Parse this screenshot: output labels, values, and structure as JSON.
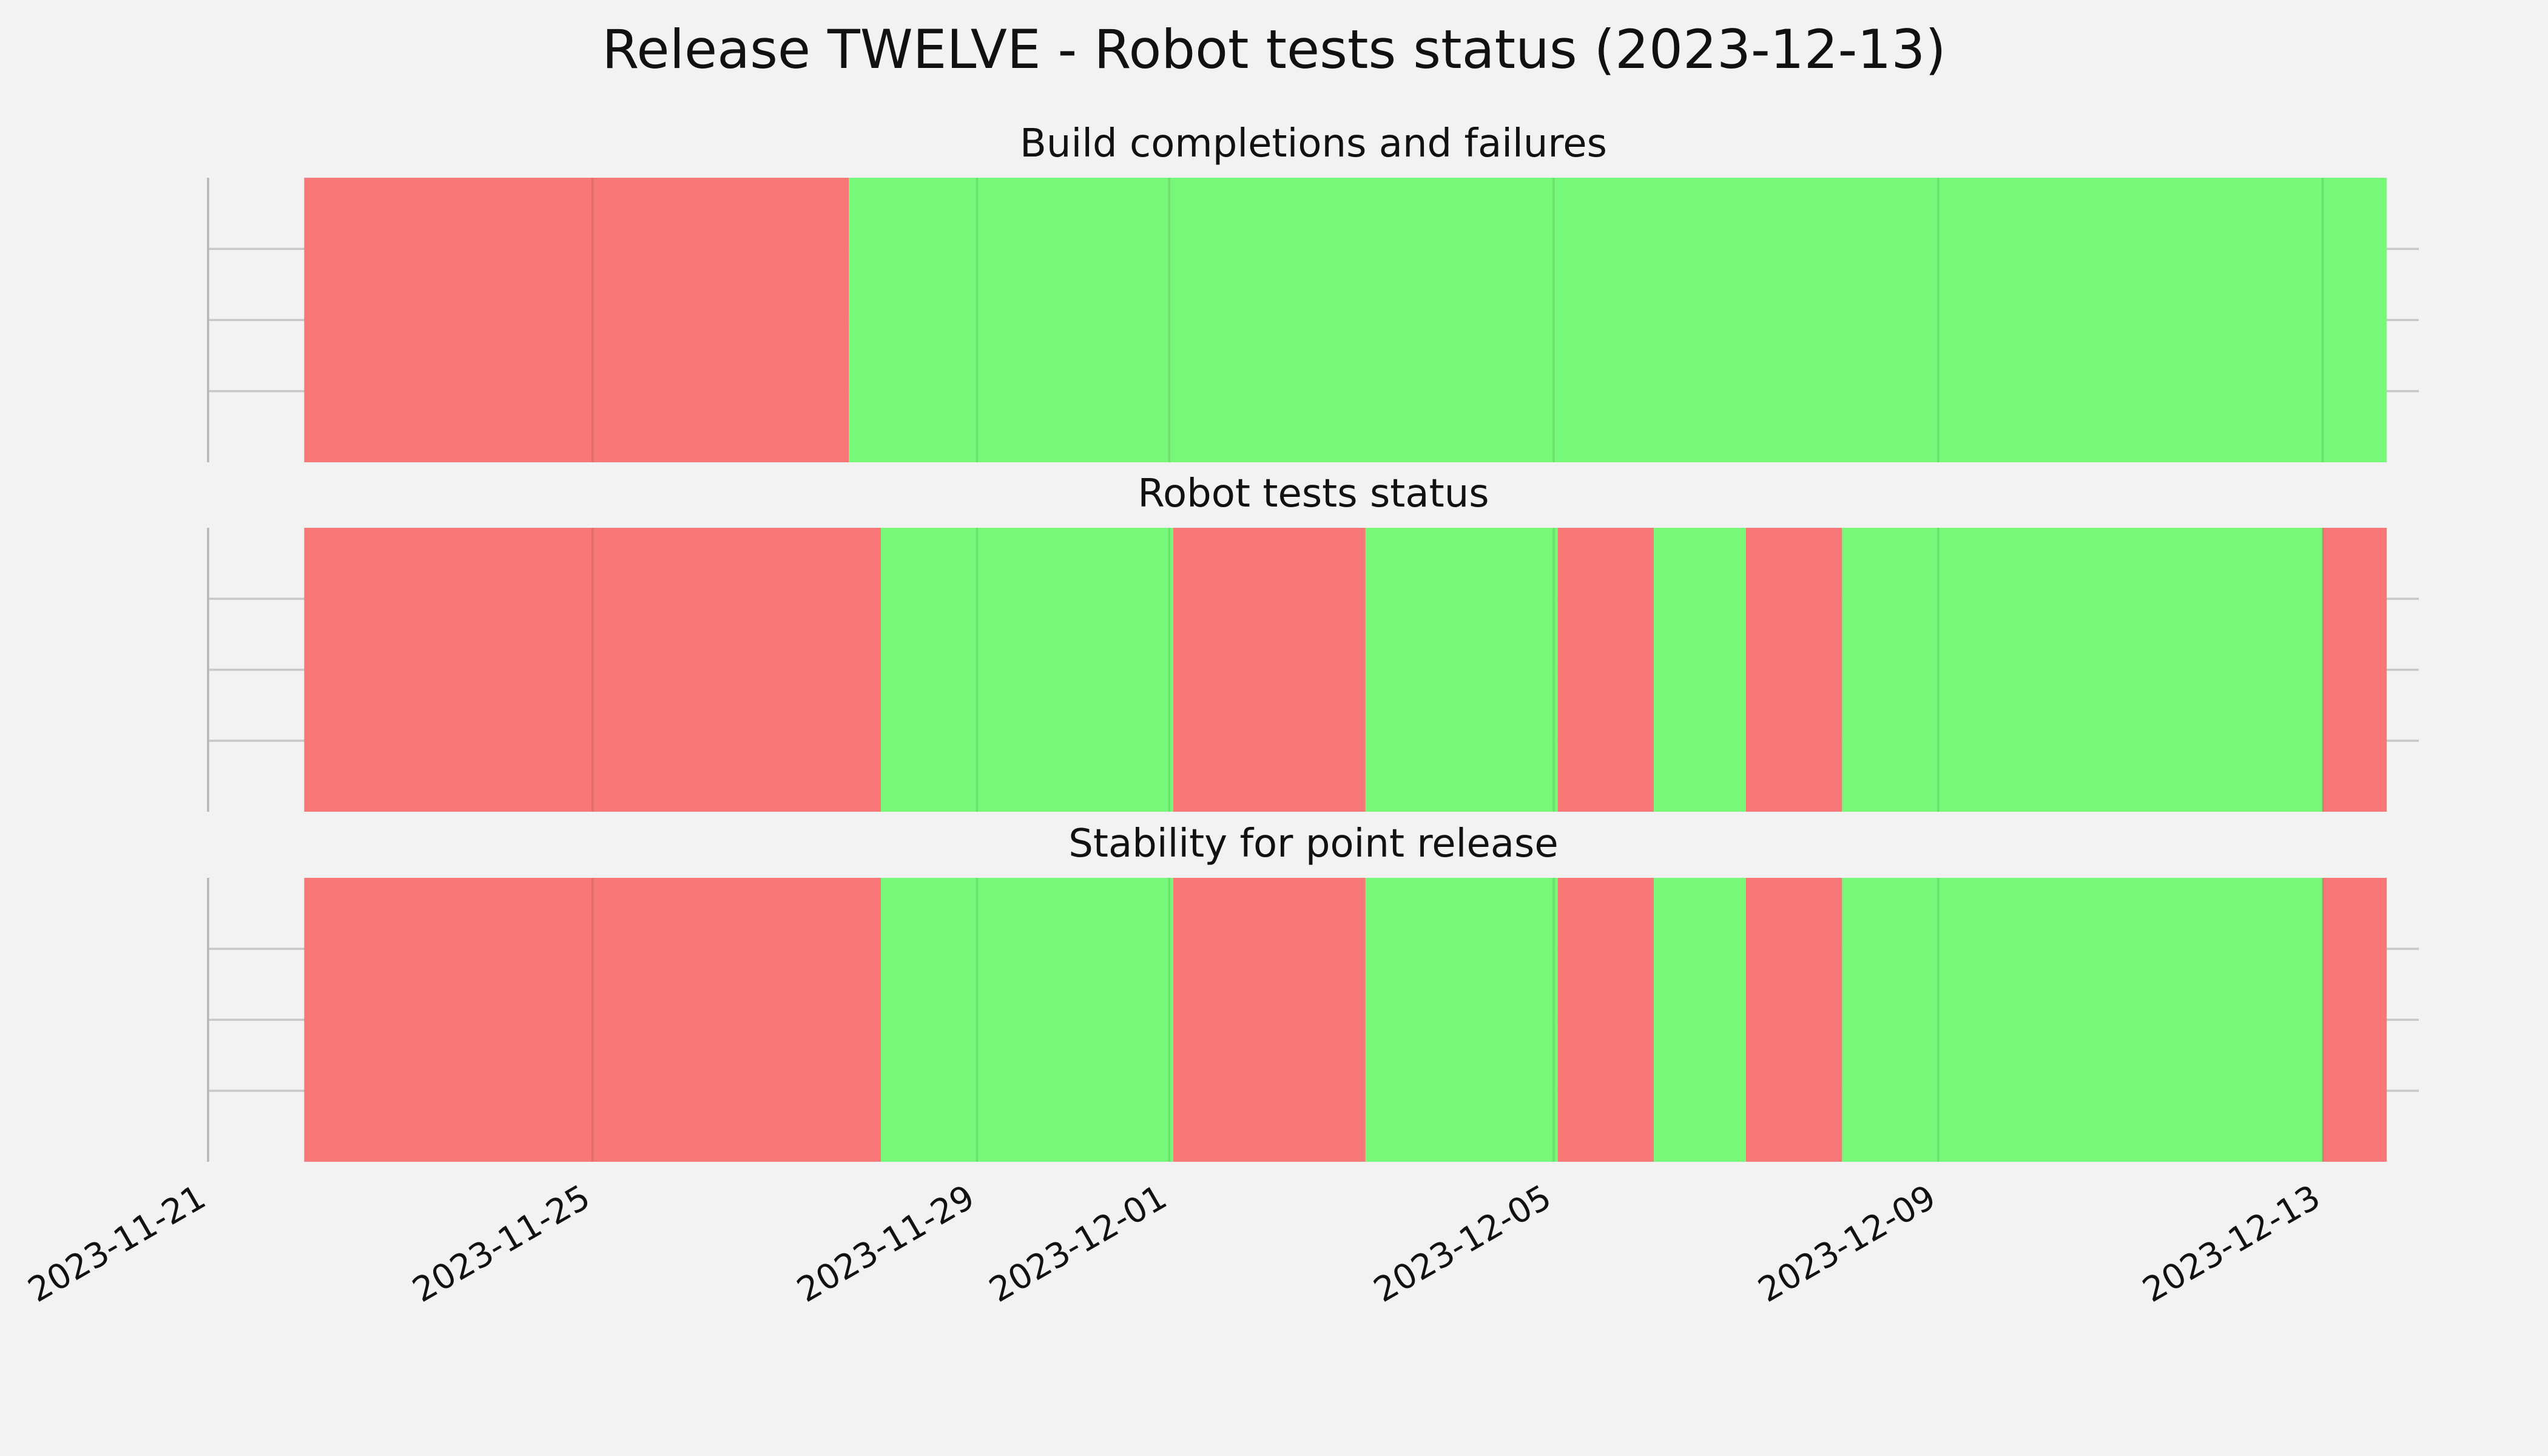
{
  "chart_data": {
    "type": "timeline",
    "title": "Release TWELVE - Robot tests status (2023-12-13)",
    "xlim": [
      "2023-11-21",
      "2023-12-14"
    ],
    "x_ticks": [
      "2023-11-21",
      "2023-11-25",
      "2023-11-29",
      "2023-12-01",
      "2023-12-05",
      "2023-12-09",
      "2023-12-13"
    ],
    "grid": true,
    "colors": {
      "fail": "#f87878",
      "pass": "#78f878",
      "background": "#f2f2f2"
    },
    "panels": [
      {
        "title": "Build completions and failures",
        "segments": [
          {
            "start": "2023-11-22",
            "end": "2023-11-27 16:00",
            "status": "fail"
          },
          {
            "start": "2023-11-27 16:00",
            "end": "2023-12-13 16:00",
            "status": "pass"
          }
        ]
      },
      {
        "title": "Robot tests status",
        "segments": [
          {
            "start": "2023-11-22",
            "end": "2023-11-28",
            "status": "fail"
          },
          {
            "start": "2023-11-28",
            "end": "2023-12-01 01:00",
            "status": "pass"
          },
          {
            "start": "2023-12-01 01:00",
            "end": "2023-12-03 01:00",
            "status": "fail"
          },
          {
            "start": "2023-12-03 01:00",
            "end": "2023-12-05 01:00",
            "status": "pass"
          },
          {
            "start": "2023-12-05 01:00",
            "end": "2023-12-06 01:00",
            "status": "fail"
          },
          {
            "start": "2023-12-06 01:00",
            "end": "2023-12-07",
            "status": "pass"
          },
          {
            "start": "2023-12-07",
            "end": "2023-12-08",
            "status": "fail"
          },
          {
            "start": "2023-12-08",
            "end": "2023-12-13",
            "status": "pass"
          },
          {
            "start": "2023-12-13",
            "end": "2023-12-13 16:00",
            "status": "fail"
          }
        ]
      },
      {
        "title": "Stability for point release",
        "segments": [
          {
            "start": "2023-11-22",
            "end": "2023-11-28",
            "status": "fail"
          },
          {
            "start": "2023-11-28",
            "end": "2023-12-01 01:00",
            "status": "pass"
          },
          {
            "start": "2023-12-01 01:00",
            "end": "2023-12-03 01:00",
            "status": "fail"
          },
          {
            "start": "2023-12-03 01:00",
            "end": "2023-12-05 01:00",
            "status": "pass"
          },
          {
            "start": "2023-12-05 01:00",
            "end": "2023-12-06 01:00",
            "status": "fail"
          },
          {
            "start": "2023-12-06 01:00",
            "end": "2023-12-07",
            "status": "pass"
          },
          {
            "start": "2023-12-07",
            "end": "2023-12-08",
            "status": "fail"
          },
          {
            "start": "2023-12-08",
            "end": "2023-12-13",
            "status": "pass"
          },
          {
            "start": "2023-12-13",
            "end": "2023-12-13 16:00",
            "status": "fail"
          }
        ]
      }
    ]
  }
}
